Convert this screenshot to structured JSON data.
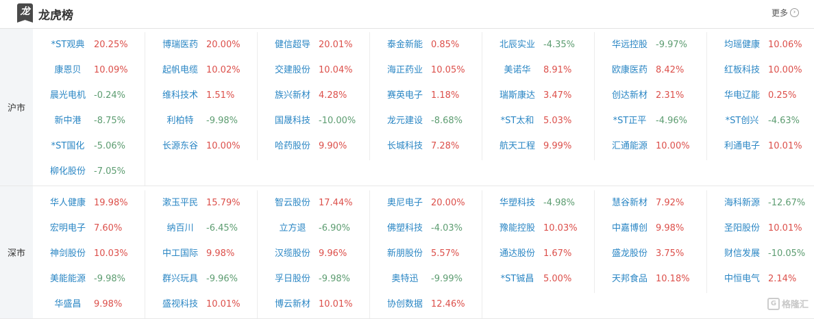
{
  "header": {
    "logo_char": "龙",
    "title": "龙虎榜",
    "more_label": "更多",
    "more_icon": "chevron-right-circle-icon"
  },
  "colors": {
    "up": "#dc4f4a",
    "down": "#5c9c70",
    "name": "#2a86c4"
  },
  "sections": [
    {
      "label": "沪市",
      "columns": [
        [
          [
            "*ST观典",
            "20.25%"
          ],
          [
            "康恩贝",
            "10.09%"
          ],
          [
            "晨光电机",
            "-0.24%"
          ],
          [
            "新中港",
            "-8.75%"
          ],
          [
            "*ST国化",
            "-5.06%"
          ],
          [
            "柳化股份",
            "-7.05%"
          ]
        ],
        [
          [
            "博瑞医药",
            "20.00%"
          ],
          [
            "起帆电缆",
            "10.02%"
          ],
          [
            "维科技术",
            "1.51%"
          ],
          [
            "利柏特",
            "-9.98%"
          ],
          [
            "长源东谷",
            "10.00%"
          ]
        ],
        [
          [
            "健信超导",
            "20.01%"
          ],
          [
            "交建股份",
            "10.04%"
          ],
          [
            "族兴新材",
            "4.28%"
          ],
          [
            "国晟科技",
            "-10.00%"
          ],
          [
            "哈药股份",
            "9.90%"
          ]
        ],
        [
          [
            "泰金新能",
            "0.85%"
          ],
          [
            "海正药业",
            "10.05%"
          ],
          [
            "赛英电子",
            "1.18%"
          ],
          [
            "龙元建设",
            "-8.68%"
          ],
          [
            "长城科技",
            "7.28%"
          ]
        ],
        [
          [
            "北辰实业",
            "-4.35%"
          ],
          [
            "美诺华",
            "8.91%"
          ],
          [
            "瑞斯康达",
            "3.47%"
          ],
          [
            "*ST太和",
            "5.03%"
          ],
          [
            "航天工程",
            "9.99%"
          ]
        ],
        [
          [
            "华远控股",
            "-9.97%"
          ],
          [
            "欧康医药",
            "8.42%"
          ],
          [
            "创达新材",
            "2.31%"
          ],
          [
            "*ST正平",
            "-4.96%"
          ],
          [
            "汇通能源",
            "10.00%"
          ]
        ],
        [
          [
            "均瑶健康",
            "10.06%"
          ],
          [
            "红板科技",
            "10.00%"
          ],
          [
            "华电辽能",
            "0.25%"
          ],
          [
            "*ST创兴",
            "-4.63%"
          ],
          [
            "利通电子",
            "10.01%"
          ]
        ]
      ]
    },
    {
      "label": "深市",
      "columns": [
        [
          [
            "华人健康",
            "19.98%"
          ],
          [
            "宏明电子",
            "7.60%"
          ],
          [
            "神剑股份",
            "10.03%"
          ],
          [
            "美能能源",
            "-9.98%"
          ],
          [
            "华盛昌",
            "9.98%"
          ]
        ],
        [
          [
            "漱玉平民",
            "15.79%"
          ],
          [
            "纳百川",
            "-6.45%"
          ],
          [
            "中工国际",
            "9.98%"
          ],
          [
            "群兴玩具",
            "-9.96%"
          ],
          [
            "盛视科技",
            "10.01%"
          ]
        ],
        [
          [
            "智云股份",
            "17.44%"
          ],
          [
            "立方退",
            "-6.90%"
          ],
          [
            "汉缆股份",
            "9.96%"
          ],
          [
            "孚日股份",
            "-9.98%"
          ],
          [
            "博云新材",
            "10.01%"
          ]
        ],
        [
          [
            "奥尼电子",
            "20.00%"
          ],
          [
            "佛塑科技",
            "-4.03%"
          ],
          [
            "新朋股份",
            "5.57%"
          ],
          [
            "奥特迅",
            "-9.99%"
          ],
          [
            "协创数据",
            "12.46%"
          ]
        ],
        [
          [
            "华塑科技",
            "-4.98%"
          ],
          [
            "豫能控股",
            "10.03%"
          ],
          [
            "通达股份",
            "1.67%"
          ],
          [
            "*ST铖昌",
            "5.00%"
          ]
        ],
        [
          [
            "慧谷新材",
            "7.92%"
          ],
          [
            "中嘉博创",
            "9.98%"
          ],
          [
            "盛龙股份",
            "3.75%"
          ],
          [
            "天邦食品",
            "10.18%"
          ]
        ],
        [
          [
            "海科新源",
            "-12.67%"
          ],
          [
            "圣阳股份",
            "10.01%"
          ],
          [
            "财信发展",
            "-10.05%"
          ],
          [
            "中恒电气",
            "2.14%"
          ]
        ]
      ]
    }
  ],
  "watermark": {
    "text": "格隆汇",
    "icon": "gelonghui-logo-icon"
  }
}
